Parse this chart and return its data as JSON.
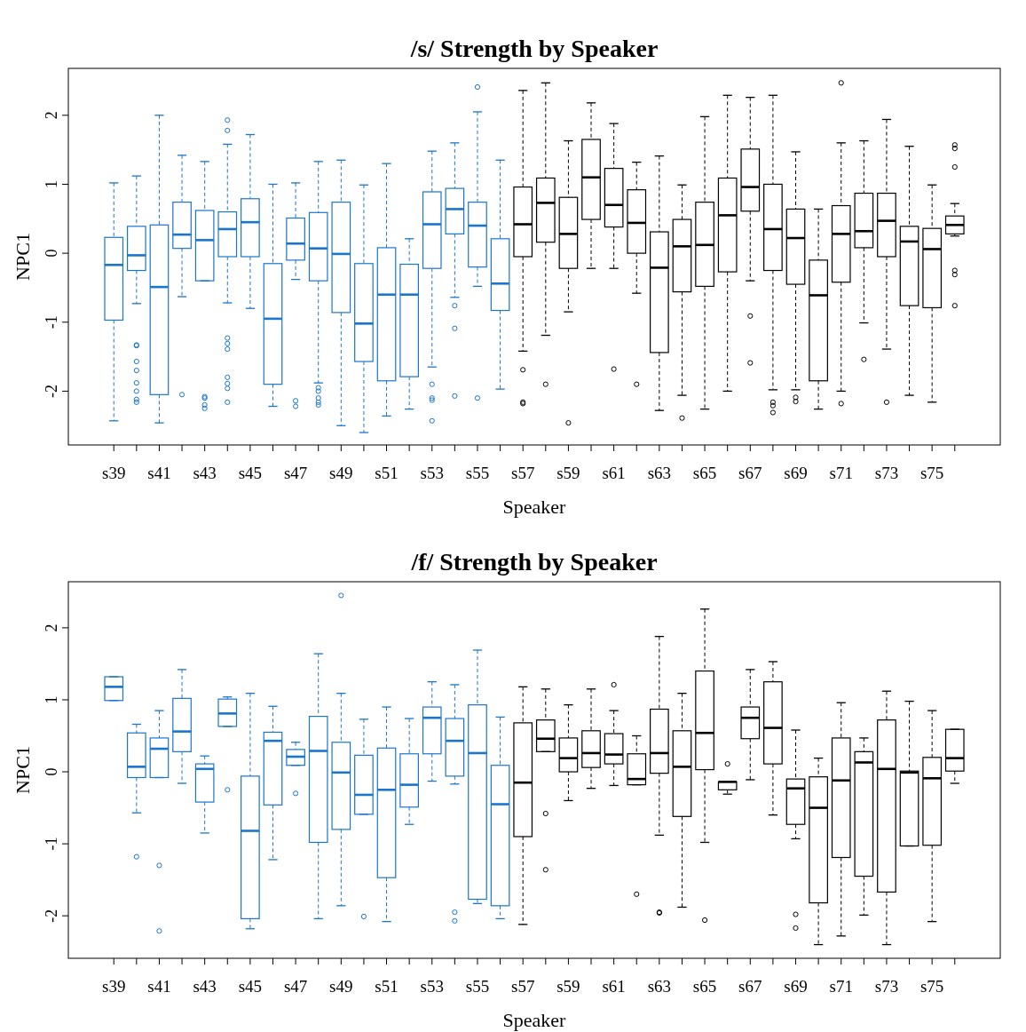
{
  "chart_data": [
    {
      "type": "box",
      "title": "/s/ Strength by Speaker",
      "xlabel": "Speaker",
      "ylabel": "NPC1",
      "ylim": [
        -2.78,
        2.68
      ],
      "yticks": [
        -2,
        -1,
        0,
        1,
        2
      ],
      "categories": [
        "s39",
        null,
        "s41",
        null,
        "s43",
        null,
        "s45",
        null,
        "s47",
        null,
        "s49",
        null,
        "s51",
        null,
        "s53",
        null,
        "s55",
        null,
        "s57",
        null,
        "s59",
        null,
        "s61",
        null,
        "s63",
        null,
        "s65",
        null,
        "s67",
        null,
        "s69",
        null,
        "s71",
        null,
        "s73",
        null,
        "s75",
        null
      ],
      "colors": [
        "#1a75cf",
        "#1a75cf",
        "#1a75cf",
        "#1a75cf",
        "#1a75cf",
        "#1a75cf",
        "#1a75cf",
        "#1a75cf",
        "#1a75cf",
        "#1a75cf",
        "#1a75cf",
        "#1a75cf",
        "#1a75cf",
        "#1a75cf",
        "#1a75cf",
        "#1a75cf",
        "#1a75cf",
        "#1a75cf",
        "#000000",
        "#000000",
        "#000000",
        "#000000",
        "#000000",
        "#000000",
        "#000000",
        "#000000",
        "#000000",
        "#000000",
        "#000000",
        "#000000",
        "#000000",
        "#000000",
        "#000000",
        "#000000",
        "#000000",
        "#000000",
        "#000000",
        "#000000"
      ],
      "boxes": [
        {
          "low": -2.43,
          "q1": -0.97,
          "median": -0.17,
          "q3": 0.23,
          "high": 1.02
        },
        {
          "low": -0.73,
          "q1": -0.25,
          "median": -0.03,
          "q3": 0.39,
          "high": 1.12,
          "outliers": [
            -1.33,
            -1.34,
            -1.57,
            -1.7,
            -1.88,
            -2.0,
            -2.12,
            -2.16
          ]
        },
        {
          "low": -2.46,
          "q1": -2.05,
          "median": -0.49,
          "q3": 0.41,
          "high": 2.0
        },
        {
          "low": -0.63,
          "q1": 0.07,
          "median": 0.27,
          "q3": 0.74,
          "high": 1.42,
          "outliers": [
            -2.05
          ]
        },
        {
          "low": -0.4,
          "q1": -0.4,
          "median": 0.19,
          "q3": 0.62,
          "high": 1.33,
          "outliers": [
            -2.08,
            -2.1,
            -2.2,
            -2.25
          ]
        },
        {
          "low": -0.72,
          "q1": -0.05,
          "median": 0.35,
          "q3": 0.6,
          "high": 1.58,
          "outliers": [
            1.93,
            1.78,
            -1.23,
            -1.31,
            -1.39,
            -1.8,
            -1.89,
            -1.96,
            -2.16
          ]
        },
        {
          "low": -0.8,
          "q1": -0.05,
          "median": 0.45,
          "q3": 0.79,
          "high": 1.72
        },
        {
          "low": -2.22,
          "q1": -1.9,
          "median": -0.95,
          "q3": -0.15,
          "high": 1.0
        },
        {
          "low": -0.38,
          "q1": -0.1,
          "median": 0.14,
          "q3": 0.51,
          "high": 1.02,
          "outliers": [
            -2.14,
            -2.22
          ]
        },
        {
          "low": -1.88,
          "q1": -0.4,
          "median": 0.07,
          "q3": 0.59,
          "high": 1.33,
          "outliers": [
            -1.95,
            -2.0,
            -2.1,
            -2.16,
            -2.2
          ]
        },
        {
          "low": -2.5,
          "q1": -0.86,
          "median": -0.01,
          "q3": 0.74,
          "high": 1.35
        },
        {
          "low": -2.6,
          "q1": -1.57,
          "median": -1.02,
          "q3": -0.15,
          "high": 0.99
        },
        {
          "low": -2.36,
          "q1": -1.85,
          "median": -0.6,
          "q3": 0.08,
          "high": 1.3
        },
        {
          "low": -2.26,
          "q1": -1.79,
          "median": -0.6,
          "q3": -0.16,
          "high": 0.21
        },
        {
          "low": -1.65,
          "q1": -0.22,
          "median": 0.42,
          "q3": 0.89,
          "high": 1.48,
          "outliers": [
            -1.9,
            -2.1,
            -2.13,
            -2.43
          ]
        },
        {
          "low": -0.64,
          "q1": 0.28,
          "median": 0.64,
          "q3": 0.94,
          "high": 1.6,
          "outliers": [
            -0.76,
            -1.09,
            -2.07
          ]
        },
        {
          "low": -0.48,
          "q1": -0.2,
          "median": 0.4,
          "q3": 0.74,
          "high": 2.05,
          "outliers": [
            2.41,
            -2.1
          ]
        },
        {
          "low": -1.97,
          "q1": -0.83,
          "median": -0.44,
          "q3": 0.21,
          "high": 1.35
        },
        {
          "low": -1.42,
          "q1": -0.05,
          "median": 0.42,
          "q3": 0.96,
          "high": 2.36,
          "outliers": [
            -1.69,
            -2.16,
            -2.18
          ]
        },
        {
          "low": -1.19,
          "q1": 0.16,
          "median": 0.73,
          "q3": 1.09,
          "high": 2.47,
          "outliers": [
            -1.9
          ]
        },
        {
          "low": -0.85,
          "q1": -0.22,
          "median": 0.28,
          "q3": 0.81,
          "high": 1.63,
          "outliers": [
            -2.46
          ]
        },
        {
          "low": -0.22,
          "q1": 0.49,
          "median": 1.1,
          "q3": 1.65,
          "high": 2.18
        },
        {
          "low": -0.22,
          "q1": 0.38,
          "median": 0.7,
          "q3": 1.23,
          "high": 1.88,
          "outliers": [
            -1.68
          ]
        },
        {
          "low": -0.58,
          "q1": 0.0,
          "median": 0.44,
          "q3": 0.92,
          "high": 1.32,
          "outliers": [
            -1.9
          ]
        },
        {
          "low": -2.28,
          "q1": -1.44,
          "median": -0.21,
          "q3": 0.31,
          "high": 1.41
        },
        {
          "low": -2.06,
          "q1": -0.56,
          "median": 0.1,
          "q3": 0.49,
          "high": 0.99,
          "outliers": [
            -2.39
          ]
        },
        {
          "low": -2.26,
          "q1": -0.48,
          "median": 0.12,
          "q3": 0.74,
          "high": 1.98
        },
        {
          "low": -2.0,
          "q1": -0.27,
          "median": 0.55,
          "q3": 1.09,
          "high": 2.29
        },
        {
          "low": -0.4,
          "q1": 0.61,
          "median": 0.96,
          "q3": 1.51,
          "high": 2.26,
          "outliers": [
            -0.91,
            -1.59
          ]
        },
        {
          "low": -1.98,
          "q1": -0.25,
          "median": 0.35,
          "q3": 1.0,
          "high": 2.29,
          "outliers": [
            -2.16,
            -2.21,
            -2.31
          ]
        },
        {
          "low": -1.98,
          "q1": -0.45,
          "median": 0.22,
          "q3": 0.64,
          "high": 1.47,
          "outliers": [
            -2.09,
            -2.15
          ]
        },
        {
          "low": -2.26,
          "q1": -1.85,
          "median": -0.61,
          "q3": -0.1,
          "high": 0.64
        },
        {
          "low": -2.0,
          "q1": -0.42,
          "median": 0.28,
          "q3": 0.69,
          "high": 1.6,
          "outliers": [
            2.47,
            -2.18
          ]
        },
        {
          "low": -1.01,
          "q1": 0.08,
          "median": 0.32,
          "q3": 0.87,
          "high": 1.63,
          "outliers": [
            -1.54
          ]
        },
        {
          "low": -1.39,
          "q1": -0.05,
          "median": 0.47,
          "q3": 0.87,
          "high": 1.94,
          "outliers": [
            -2.16
          ]
        },
        {
          "low": -2.06,
          "q1": -0.76,
          "median": 0.17,
          "q3": 0.39,
          "high": 1.55
        },
        {
          "low": -2.16,
          "q1": -0.79,
          "median": 0.06,
          "q3": 0.36,
          "high": 0.99
        },
        {
          "low": 0.25,
          "q1": 0.28,
          "median": 0.41,
          "q3": 0.54,
          "high": 0.72,
          "outliers": [
            1.57,
            1.52,
            1.25,
            -0.25,
            -0.31,
            -0.76
          ]
        }
      ]
    },
    {
      "type": "box",
      "title": "/f/ Strength by Speaker",
      "xlabel": "Speaker",
      "ylabel": "NPC1",
      "ylim": [
        -2.59,
        2.64
      ],
      "yticks": [
        -2,
        -1,
        0,
        1,
        2
      ],
      "categories": [
        "s39",
        null,
        "s41",
        null,
        "s43",
        null,
        "s45",
        null,
        "s47",
        null,
        "s49",
        null,
        "s51",
        null,
        "s53",
        null,
        "s55",
        null,
        "s57",
        null,
        "s59",
        null,
        "s61",
        null,
        "s63",
        null,
        "s65",
        null,
        "s67",
        null,
        "s69",
        null,
        "s71",
        null,
        "s73",
        null,
        "s75",
        null
      ],
      "colors": [
        "#1a75cf",
        "#1a75cf",
        "#1a75cf",
        "#1a75cf",
        "#1a75cf",
        "#1a75cf",
        "#1a75cf",
        "#1a75cf",
        "#1a75cf",
        "#1a75cf",
        "#1a75cf",
        "#1a75cf",
        "#1a75cf",
        "#1a75cf",
        "#1a75cf",
        "#1a75cf",
        "#1a75cf",
        "#1a75cf",
        "#000000",
        "#000000",
        "#000000",
        "#000000",
        "#000000",
        "#000000",
        "#000000",
        "#000000",
        "#000000",
        "#000000",
        "#000000",
        "#000000",
        "#000000",
        "#000000",
        "#000000",
        "#000000",
        "#000000",
        "#000000",
        "#000000",
        "#000000"
      ],
      "boxes": [
        {
          "low": 0.99,
          "q1": 0.99,
          "median": 1.18,
          "q3": 1.32,
          "high": 1.32
        },
        {
          "low": -0.57,
          "q1": -0.08,
          "median": 0.07,
          "q3": 0.54,
          "high": 0.66,
          "outliers": [
            -1.18
          ]
        },
        {
          "low": -0.08,
          "q1": -0.08,
          "median": 0.32,
          "q3": 0.47,
          "high": 0.85,
          "outliers": [
            -1.3,
            -2.21
          ]
        },
        {
          "low": -0.16,
          "q1": 0.28,
          "median": 0.56,
          "q3": 1.02,
          "high": 1.42
        },
        {
          "low": -0.85,
          "q1": -0.42,
          "median": 0.04,
          "q3": 0.11,
          "high": 0.22
        },
        {
          "low": 0.63,
          "q1": 0.63,
          "median": 0.81,
          "q3": 1.01,
          "high": 1.04,
          "outliers": [
            -0.25
          ]
        },
        {
          "low": -2.18,
          "q1": -2.04,
          "median": -0.82,
          "q3": -0.06,
          "high": 1.09
        },
        {
          "low": -1.22,
          "q1": -0.46,
          "median": 0.43,
          "q3": 0.55,
          "high": 0.91
        },
        {
          "low": 0.09,
          "q1": 0.09,
          "median": 0.21,
          "q3": 0.31,
          "high": 0.41,
          "outliers": [
            -0.3
          ]
        },
        {
          "low": -2.04,
          "q1": -0.98,
          "median": 0.29,
          "q3": 0.77,
          "high": 1.64
        },
        {
          "low": -1.86,
          "q1": -0.8,
          "median": -0.01,
          "q3": 0.41,
          "high": 1.09,
          "outliers": [
            2.45
          ]
        },
        {
          "low": -0.59,
          "q1": -0.59,
          "median": -0.32,
          "q3": 0.23,
          "high": 0.73,
          "outliers": [
            -2.01
          ]
        },
        {
          "low": -2.08,
          "q1": -1.47,
          "median": -0.25,
          "q3": 0.33,
          "high": 0.9
        },
        {
          "low": -0.73,
          "q1": -0.49,
          "median": -0.18,
          "q3": 0.25,
          "high": 0.74
        },
        {
          "low": -0.13,
          "q1": 0.25,
          "median": 0.75,
          "q3": 0.9,
          "high": 1.25
        },
        {
          "low": -0.17,
          "q1": -0.06,
          "median": 0.43,
          "q3": 0.74,
          "high": 1.21,
          "outliers": [
            -1.95,
            -2.07
          ]
        },
        {
          "low": -1.83,
          "q1": -1.77,
          "median": 0.26,
          "q3": 0.93,
          "high": 1.69
        },
        {
          "low": -2.04,
          "q1": -1.86,
          "median": -0.45,
          "q3": 0.09,
          "high": 0.76
        },
        {
          "low": -2.12,
          "q1": -0.9,
          "median": -0.15,
          "q3": 0.68,
          "high": 1.18
        },
        {
          "low": 0.28,
          "q1": 0.28,
          "median": 0.46,
          "q3": 0.72,
          "high": 1.15,
          "outliers": [
            -0.58,
            -1.36
          ]
        },
        {
          "low": -0.4,
          "q1": 0.0,
          "median": 0.19,
          "q3": 0.47,
          "high": 0.93
        },
        {
          "low": -0.23,
          "q1": 0.06,
          "median": 0.26,
          "q3": 0.57,
          "high": 1.15
        },
        {
          "low": -0.19,
          "q1": 0.11,
          "median": 0.24,
          "q3": 0.53,
          "high": 0.85,
          "outliers": [
            1.21
          ]
        },
        {
          "low": -0.18,
          "q1": -0.18,
          "median": -0.1,
          "q3": 0.25,
          "high": 0.5,
          "outliers": [
            -1.7
          ]
        },
        {
          "low": -0.88,
          "q1": -0.02,
          "median": 0.26,
          "q3": 0.87,
          "high": 1.88,
          "outliers": [
            -1.95,
            -1.96
          ]
        },
        {
          "low": -1.88,
          "q1": -0.62,
          "median": 0.07,
          "q3": 0.57,
          "high": 1.09
        },
        {
          "low": -0.98,
          "q1": 0.03,
          "median": 0.54,
          "q3": 1.4,
          "high": 2.26,
          "outliers": [
            -2.06
          ]
        },
        {
          "low": -0.31,
          "q1": -0.25,
          "median": -0.14,
          "q3": -0.14,
          "high": -0.14,
          "outliers": [
            0.11
          ]
        },
        {
          "low": -0.11,
          "q1": 0.46,
          "median": 0.75,
          "q3": 0.9,
          "high": 1.42
        },
        {
          "low": -0.6,
          "q1": 0.11,
          "median": 0.61,
          "q3": 1.25,
          "high": 1.53
        },
        {
          "low": -0.93,
          "q1": -0.73,
          "median": -0.23,
          "q3": -0.1,
          "high": 0.58,
          "outliers": [
            -1.98,
            -2.17
          ]
        },
        {
          "low": -2.4,
          "q1": -1.82,
          "median": -0.5,
          "q3": -0.07,
          "high": 0.19
        },
        {
          "low": -2.28,
          "q1": -1.19,
          "median": -0.12,
          "q3": 0.47,
          "high": 0.96
        },
        {
          "low": -1.99,
          "q1": -1.45,
          "median": 0.13,
          "q3": 0.28,
          "high": 0.47
        },
        {
          "low": -2.4,
          "q1": -1.67,
          "median": 0.04,
          "q3": 0.72,
          "high": 1.12
        },
        {
          "low": -1.03,
          "q1": -1.03,
          "median": -0.01,
          "q3": 0.01,
          "high": 0.98
        },
        {
          "low": -2.08,
          "q1": -1.02,
          "median": -0.09,
          "q3": 0.2,
          "high": 0.85
        },
        {
          "low": -0.16,
          "q1": 0.01,
          "median": 0.19,
          "q3": 0.59,
          "high": 0.59
        }
      ]
    }
  ]
}
